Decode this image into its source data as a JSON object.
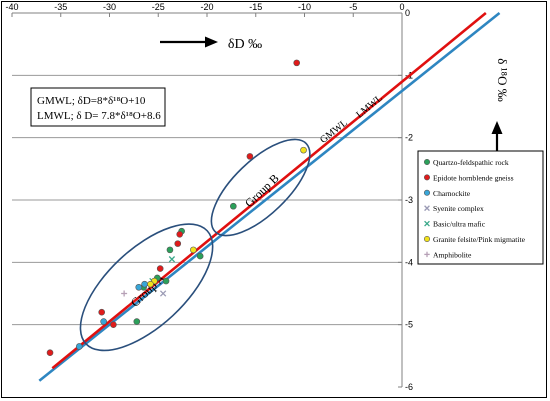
{
  "chart_data": {
    "type": "scatter",
    "xlim": [
      -40,
      0
    ],
    "ylim": [
      -6,
      0
    ],
    "x_ticks": [
      -40,
      -35,
      -30,
      -25,
      -20,
      -15,
      -10,
      -5,
      0
    ],
    "y_ticks": [
      0,
      -1,
      -2,
      -3,
      -4,
      -5,
      -6
    ],
    "x_tick_labels": [
      "-40",
      "-35",
      "-30",
      "-25",
      "-20",
      "-15",
      "-10",
      "-5",
      "0"
    ],
    "y_tick_labels": [
      "0",
      "-1",
      "-2",
      "-3",
      "-4",
      "-5",
      "-6"
    ],
    "x_axis_position": "top",
    "y_axis_position": "right",
    "grid": "horizontal",
    "xlabel": "δD ‰",
    "ylabel": "δ ¹⁸O ‰",
    "legend_position": "right",
    "equations": {
      "gmwl": "GMWL; δD=8*δ¹⁸O+10",
      "lmwl": "LMWL; δ D= 7.8*δ¹⁸O+8.6"
    },
    "lines": [
      {
        "label": "GMWL",
        "slope": 8,
        "intercept": 10,
        "color": "#2e86c1",
        "y_from": -5.9,
        "y_to": 0
      },
      {
        "label": "LMWL",
        "slope": 7.8,
        "intercept": 8.6,
        "color": "#e01010",
        "y_from": -5.7,
        "y_to": 0
      }
    ],
    "groups": [
      {
        "label": "Group A",
        "cx": -26.2,
        "cy": -4.4,
        "rx_data": 8.5,
        "ry_data": 0.62,
        "angle": -43
      },
      {
        "label": "Group B",
        "cx": -14.5,
        "cy": -2.8,
        "rx_data": 6.5,
        "ry_data": 0.43,
        "angle": -44
      }
    ],
    "series": [
      {
        "name": "Quartzo-feldspathic rock",
        "marker": "circle",
        "color": "#2ba05a",
        "points": [
          [
            -22.6,
            -3.5
          ],
          [
            -20.7,
            -3.9
          ],
          [
            -23.8,
            -3.8
          ],
          [
            -25.1,
            -4.25
          ],
          [
            -27.2,
            -4.95
          ],
          [
            -17.3,
            -3.1
          ],
          [
            -26.5,
            -4.4
          ],
          [
            -24.2,
            -4.3
          ]
        ]
      },
      {
        "name": "Epidote hornblende gneiss",
        "marker": "circle",
        "color": "#e01b1b",
        "points": [
          [
            -36.1,
            -5.45
          ],
          [
            -30.8,
            -4.8
          ],
          [
            -22.8,
            -3.55
          ],
          [
            -23.0,
            -3.7
          ],
          [
            -24.8,
            -4.1
          ],
          [
            -10.8,
            -0.8
          ],
          [
            -15.6,
            -2.3
          ],
          [
            -29.6,
            -5.0
          ]
        ]
      },
      {
        "name": "Charnockite",
        "marker": "circle",
        "color": "#38a6d8",
        "points": [
          [
            -33.1,
            -5.35
          ],
          [
            -30.6,
            -4.95
          ],
          [
            -27.0,
            -4.4
          ],
          [
            -26.4,
            -4.35
          ]
        ]
      },
      {
        "name": "Syenite complex",
        "marker": "x",
        "color": "#9b9bb5",
        "points": [
          [
            -24.5,
            -4.5
          ]
        ]
      },
      {
        "name": "Basic/ultra mafic",
        "marker": "x",
        "color": "#3aa88a",
        "points": [
          [
            -23.6,
            -3.95
          ],
          [
            -25.6,
            -4.3
          ]
        ]
      },
      {
        "name": "Granite felsite/Pink migmatite",
        "marker": "circle",
        "color": "#f2e21a",
        "points": [
          [
            -10.1,
            -2.2
          ],
          [
            -21.4,
            -3.8
          ],
          [
            -25.4,
            -4.3
          ],
          [
            -25.8,
            -4.35
          ]
        ]
      },
      {
        "name": "Amphibolite",
        "marker": "plus",
        "color": "#b6a0b6",
        "points": [
          [
            -28.5,
            -4.5
          ]
        ]
      }
    ]
  }
}
